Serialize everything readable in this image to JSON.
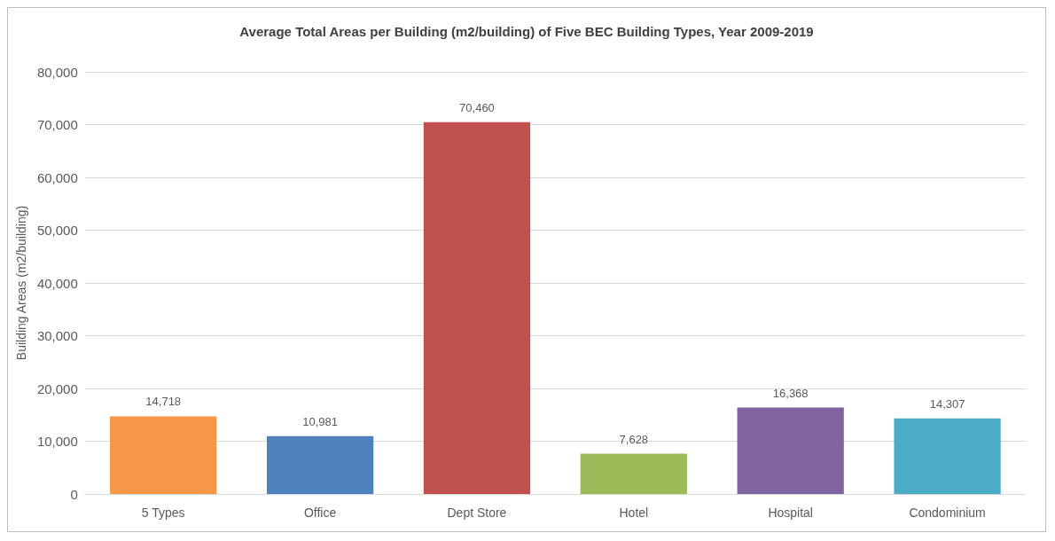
{
  "chart_data": {
    "type": "bar",
    "title": "Average Total Areas per Building (m2/building) of Five BEC Building Types, Year 2009-2019",
    "ylabel": "Building Areas (m2/building)",
    "categories": [
      "5 Types",
      "Office",
      "Dept Store",
      "Hotel",
      "Hospital",
      "Condominium"
    ],
    "values": [
      14718,
      10981,
      70460,
      7628,
      16368,
      14307
    ],
    "value_labels": [
      "14,718",
      "10,981",
      "70,460",
      "7,628",
      "16,368",
      "14,307"
    ],
    "colors": [
      "#f79646",
      "#4f81bd",
      "#c0504d",
      "#9bbb59",
      "#8064a2",
      "#4bacc6"
    ],
    "ylim": [
      0,
      80000
    ],
    "yticks": [
      0,
      {
        "value": 10000,
        "label": "10,000"
      },
      {
        "value": 20000,
        "label": "20,000"
      },
      {
        "value": 30000,
        "label": "30,000"
      },
      {
        "value": 40000,
        "label": "40,000"
      },
      {
        "value": 50000,
        "label": "50,000"
      },
      {
        "value": 60000,
        "label": "60,000"
      },
      {
        "value": 70000,
        "label": "70,000"
      },
      {
        "value": 80000,
        "label": "80,000"
      }
    ],
    "grid": "y"
  }
}
